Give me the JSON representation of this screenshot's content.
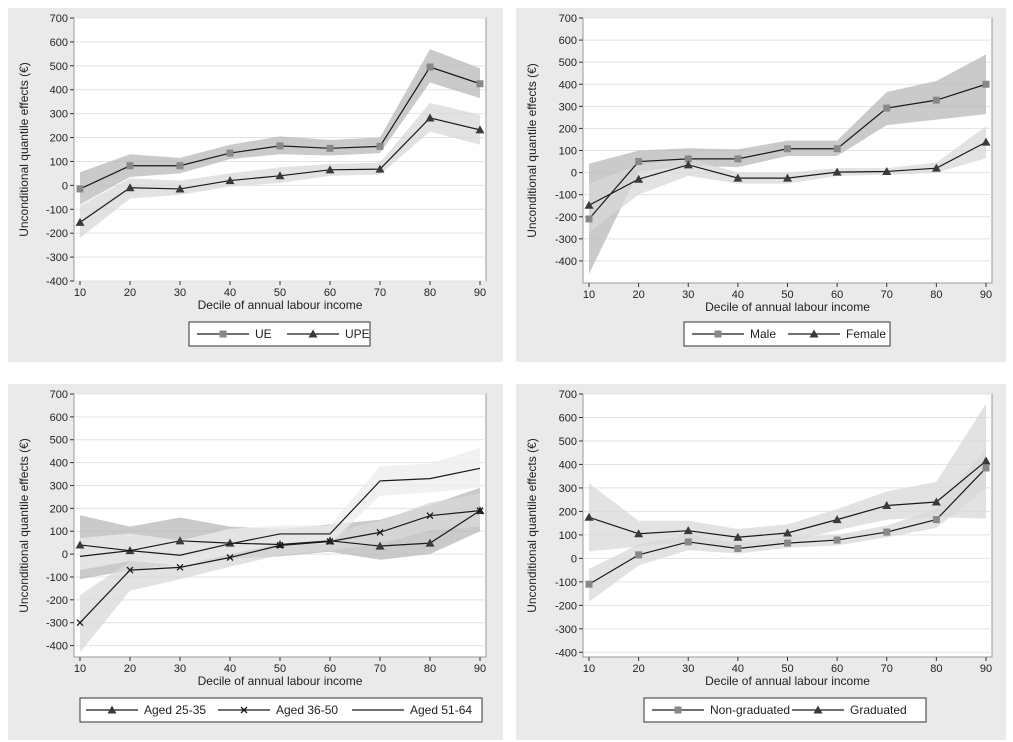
{
  "colors": {
    "panel_bg": "#eaeaea",
    "plot_bg": "#ffffff",
    "grid": "#e2e2e2",
    "band_dark": "#b8b8b8",
    "band_light": "#d8d8d8",
    "line": "#1a1a1a",
    "square_marker": "#888888",
    "triangle_marker": "#3a3a3a"
  },
  "chart_data": [
    {
      "type": "line",
      "xlabel": "Decile of annual labour income",
      "ylabel": "Unconditional quantile effects (€)",
      "x": [
        10,
        20,
        30,
        40,
        50,
        60,
        70,
        80,
        90
      ],
      "ylim": [
        -400,
        700
      ],
      "yticks": [
        -400,
        -300,
        -200,
        -100,
        0,
        100,
        200,
        300,
        400,
        500,
        600,
        700
      ],
      "grid": true,
      "legend_position": "bottom",
      "series": [
        {
          "name": "UE",
          "marker": "square",
          "values": [
            -15,
            82,
            82,
            135,
            165,
            155,
            163,
            495,
            425
          ],
          "ci_low": [
            -80,
            35,
            50,
            110,
            130,
            125,
            135,
            430,
            365
          ],
          "ci_high": [
            55,
            130,
            115,
            170,
            205,
            190,
            200,
            570,
            490
          ]
        },
        {
          "name": "UPE",
          "marker": "triangle",
          "values": [
            -155,
            -10,
            -15,
            20,
            40,
            65,
            68,
            282,
            232
          ],
          "ci_low": [
            -220,
            -55,
            -40,
            -5,
            10,
            40,
            45,
            225,
            170
          ],
          "ci_high": [
            -85,
            30,
            20,
            50,
            75,
            90,
            95,
            345,
            295
          ]
        }
      ]
    },
    {
      "type": "line",
      "xlabel": "Decile of annual labour income",
      "ylabel": "Unconditional quantile effects (€)",
      "x": [
        10,
        20,
        30,
        40,
        50,
        60,
        70,
        80,
        90
      ],
      "ylim": [
        -500,
        700
      ],
      "yticks": [
        -400,
        -300,
        -200,
        -100,
        0,
        100,
        200,
        300,
        400,
        500,
        600,
        700
      ],
      "grid": true,
      "legend_position": "bottom",
      "series": [
        {
          "name": "Male",
          "marker": "square",
          "values": [
            -210,
            50,
            62,
            62,
            108,
            108,
            292,
            328,
            400
          ],
          "ci_low": [
            -460,
            5,
            30,
            25,
            75,
            75,
            215,
            240,
            265
          ],
          "ci_high": [
            40,
            100,
            110,
            105,
            145,
            145,
            365,
            415,
            535
          ]
        },
        {
          "name": "Female",
          "marker": "triangle",
          "values": [
            -148,
            -30,
            35,
            -25,
            -25,
            2,
            5,
            20,
            138
          ],
          "ci_low": [
            -270,
            -100,
            -15,
            -50,
            -50,
            -15,
            -10,
            0,
            65
          ],
          "ci_high": [
            -50,
            35,
            65,
            0,
            0,
            20,
            20,
            45,
            210
          ]
        }
      ]
    },
    {
      "type": "line",
      "xlabel": "Decile of annual labour income",
      "ylabel": "Unconditional quantile effects (€)",
      "x": [
        10,
        20,
        30,
        40,
        50,
        60,
        70,
        80,
        90
      ],
      "ylim": [
        -450,
        700
      ],
      "yticks": [
        -400,
        -300,
        -200,
        -100,
        0,
        100,
        200,
        300,
        400,
        500,
        600,
        700
      ],
      "grid": true,
      "legend_position": "bottom",
      "series": [
        {
          "name": "Aged 25-35",
          "marker": "triangle",
          "values": [
            40,
            15,
            58,
            48,
            42,
            58,
            35,
            48,
            190
          ],
          "ci_low": [
            -110,
            -70,
            -40,
            -20,
            -10,
            10,
            -25,
            0,
            100
          ],
          "ci_high": [
            170,
            120,
            160,
            120,
            110,
            130,
            150,
            215,
            290
          ]
        },
        {
          "name": "Aged 36-50",
          "marker": "x",
          "values": [
            -300,
            -70,
            -58,
            -15,
            38,
            55,
            95,
            168,
            190
          ],
          "ci_low": [
            -430,
            -160,
            -110,
            -55,
            -5,
            15,
            45,
            105,
            120
          ],
          "ci_high": [
            -180,
            -30,
            -20,
            20,
            75,
            95,
            145,
            225,
            265
          ]
        },
        {
          "name": "Aged 51-64",
          "marker": "none",
          "values": [
            -10,
            15,
            -5,
            45,
            88,
            88,
            320,
            330,
            375
          ],
          "ci_low": [
            -70,
            -30,
            -50,
            0,
            45,
            45,
            255,
            270,
            290
          ],
          "ci_high": [
            70,
            90,
            60,
            110,
            125,
            125,
            385,
            395,
            465
          ]
        }
      ]
    },
    {
      "type": "line",
      "xlabel": "Decile of annual labour income",
      "ylabel": "Unconditional quantile effects (€)",
      "x": [
        10,
        20,
        30,
        40,
        50,
        60,
        70,
        80,
        90
      ],
      "ylim": [
        -420,
        700
      ],
      "yticks": [
        -400,
        -300,
        -200,
        -100,
        0,
        100,
        200,
        300,
        400,
        500,
        600,
        700
      ],
      "grid": true,
      "legend_position": "bottom",
      "series": [
        {
          "name": "Non-graduated",
          "marker": "square",
          "values": [
            -110,
            15,
            70,
            42,
            65,
            78,
            112,
            165,
            385
          ],
          "ci_low": [
            -185,
            -30,
            35,
            20,
            45,
            55,
            90,
            130,
            300
          ],
          "ci_high": [
            -45,
            60,
            100,
            65,
            90,
            100,
            140,
            210,
            470
          ]
        },
        {
          "name": "Graduated",
          "marker": "triangle",
          "values": [
            175,
            105,
            118,
            90,
            108,
            165,
            225,
            240,
            415
          ],
          "ci_low": [
            30,
            50,
            70,
            50,
            70,
            120,
            165,
            175,
            170
          ],
          "ci_high": [
            320,
            160,
            160,
            125,
            145,
            210,
            285,
            325,
            660
          ]
        }
      ]
    }
  ]
}
